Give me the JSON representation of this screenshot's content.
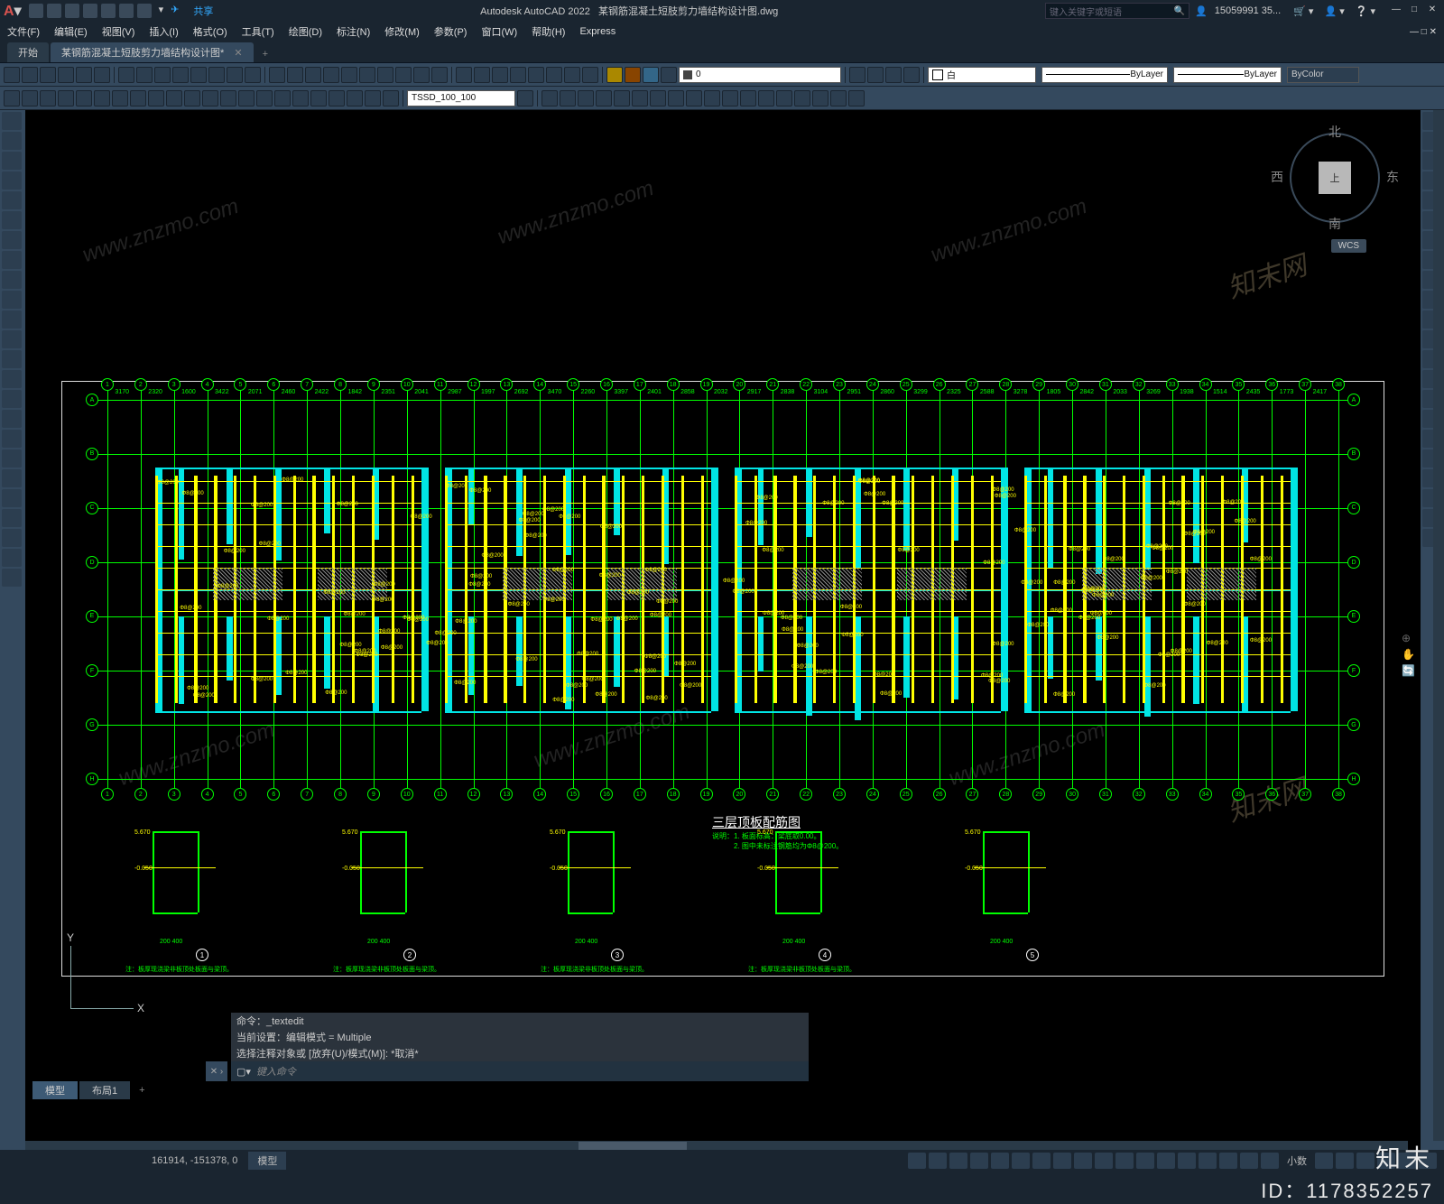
{
  "app": {
    "name": "Autodesk AutoCAD 2022",
    "doc": "某钢筋混凝土短肢剪力墙结构设计图.dwg"
  },
  "search": {
    "placeholder": "键入关键字或短语"
  },
  "user": {
    "name": "15059991 35..."
  },
  "share": {
    "label": "共享"
  },
  "menus": [
    "文件(F)",
    "编辑(E)",
    "视图(V)",
    "插入(I)",
    "格式(O)",
    "工具(T)",
    "绘图(D)",
    "标注(N)",
    "修改(M)",
    "参数(P)",
    "窗口(W)",
    "帮助(H)",
    "Express"
  ],
  "tabs": {
    "start": "开始",
    "doc": "某钢筋混凝土短肢剪力墙结构设计图*"
  },
  "toolbar": {
    "style_dd": "TSSD_100_100",
    "zero": "0",
    "layer_label": "白",
    "bylayer1": "ByLayer",
    "bylayer2": "ByLayer",
    "bycolor": "ByColor"
  },
  "viewcube": {
    "top": "上",
    "n": "北",
    "s": "南",
    "e": "东",
    "w": "西",
    "wcs": "WCS"
  },
  "cmd": {
    "l1": "命令：_textedit",
    "l2": "当前设置：编辑模式 = Multiple",
    "l3": "选择注释对象或 [放弃(U)/模式(M)]: *取消*",
    "prompt": "键入命令"
  },
  "layout": {
    "model": "模型",
    "layout1": "布局1"
  },
  "status": {
    "coords": "161914, -151378, 0",
    "scale": "小数"
  },
  "drawing": {
    "title": "三层顶板配筋图",
    "note1": "说明：1. 板面标高：梁底取0.00。",
    "note2": "　　　2. 图中未标注钢筋均为Φ8@200。",
    "gridcount_v": 38,
    "gridcount_h": 8,
    "details_note": "注：板厚现浇梁非板顶处板面与梁顶。"
  },
  "brand": {
    "logo": "知末",
    "id": "ID：1178352257"
  },
  "watermark": "www.znzmo.com",
  "colors": {
    "grid": "#00ff00",
    "cyan": "#00e5e5",
    "yellow": "#ffff00",
    "bg": "#000000",
    "ui": "#34495e"
  }
}
